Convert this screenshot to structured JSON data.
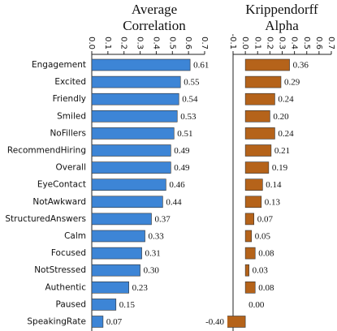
{
  "chart_data": [
    {
      "type": "bar",
      "orientation": "horizontal",
      "title": "Average Correlation",
      "categories": [
        "Engagement",
        "Excited",
        "Friendly",
        "Smiled",
        "NoFillers",
        "RecommendHiring",
        "Overall",
        "EyeContact",
        "NotAwkward",
        "StructuredAnswers",
        "Calm",
        "Focused",
        "NotStressed",
        "Authentic",
        "Paused",
        "SpeakingRate"
      ],
      "values": [
        0.61,
        0.55,
        0.54,
        0.53,
        0.51,
        0.49,
        0.49,
        0.46,
        0.44,
        0.37,
        0.33,
        0.31,
        0.3,
        0.23,
        0.15,
        0.07
      ],
      "value_labels": [
        "0.61",
        "0.55",
        "0.54",
        "0.53",
        "0.51",
        "0.49",
        "0.49",
        "0.46",
        "0.44",
        "0.37",
        "0.33",
        "0.31",
        "0.30",
        "0.23",
        "0.15",
        "0.07"
      ],
      "color": "#3d85d6",
      "xlim": [
        0,
        0.7
      ],
      "xticks": [
        {
          "value": 0,
          "label": "0.0"
        },
        0.1,
        0.2,
        0.3,
        0.4,
        0.5,
        0.6,
        0.7
      ]
    },
    {
      "type": "bar",
      "orientation": "horizontal",
      "title": "Krippendorff Alpha",
      "values": [
        0.36,
        0.29,
        0.24,
        0.2,
        0.24,
        0.21,
        0.19,
        0.14,
        0.13,
        0.07,
        0.05,
        0.08,
        0.03,
        0.08,
        0.0,
        -0.4
      ],
      "value_labels": [
        "0.36",
        "0.29",
        "0.24",
        "0.20",
        "0.24",
        "0.21",
        "0.19",
        "0.14",
        "0.13",
        "0.07",
        "0.05",
        "0.08",
        "0.03",
        "0.08",
        "0.00",
        "-0.40"
      ],
      "color": "#b5631a",
      "xlim": [
        -0.1,
        0.7
      ],
      "xticks": [
        -0.1,
        {
          "value": 0,
          "label": "0.0"
        },
        0.1,
        0.2,
        0.3,
        0.4,
        0.5,
        0.6,
        0.7
      ]
    }
  ]
}
